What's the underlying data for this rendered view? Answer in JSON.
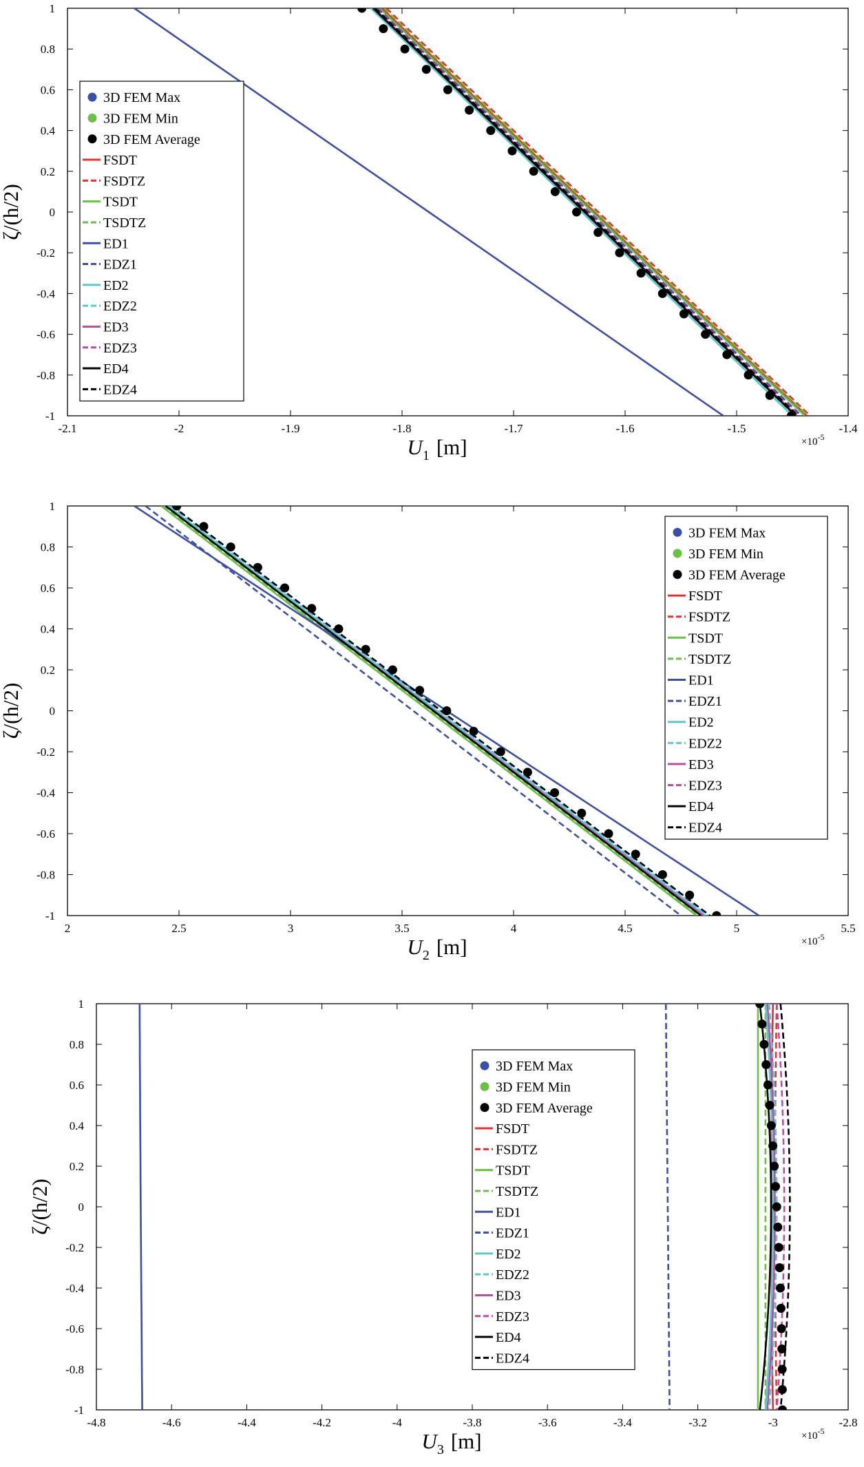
{
  "legend_entries": [
    {
      "label": "3D FEM Max",
      "kind": "marker",
      "color": "#3b4fa8"
    },
    {
      "label": "3D FEM Min",
      "kind": "marker",
      "color": "#6abf45"
    },
    {
      "label": "3D FEM Average",
      "kind": "marker",
      "color": "#000000"
    },
    {
      "label": "FSDT",
      "kind": "line",
      "color": "#e8302e",
      "dash": "solid"
    },
    {
      "label": "FSDTZ",
      "kind": "line",
      "color": "#e8302e",
      "dash": "dash"
    },
    {
      "label": "TSDT",
      "kind": "line",
      "color": "#6abf45",
      "dash": "solid"
    },
    {
      "label": "TSDTZ",
      "kind": "line",
      "color": "#6abf45",
      "dash": "dash"
    },
    {
      "label": "ED1",
      "kind": "line",
      "color": "#3b4fa8",
      "dash": "solid"
    },
    {
      "label": "EDZ1",
      "kind": "line",
      "color": "#3b4fa8",
      "dash": "dash"
    },
    {
      "label": "ED2",
      "kind": "line",
      "color": "#5bc8d0",
      "dash": "solid"
    },
    {
      "label": "EDZ2",
      "kind": "line",
      "color": "#5bc8d0",
      "dash": "dash"
    },
    {
      "label": "ED3",
      "kind": "line",
      "color": "#b84fa6",
      "dash": "solid"
    },
    {
      "label": "EDZ3",
      "kind": "line",
      "color": "#b84fa6",
      "dash": "dash"
    },
    {
      "label": "ED4",
      "kind": "line",
      "color": "#000000",
      "dash": "solid"
    },
    {
      "label": "EDZ4",
      "kind": "line",
      "color": "#000000",
      "dash": "dash"
    }
  ],
  "chart_data": [
    {
      "type": "line",
      "xlabel": "U",
      "xlabel_sub": "1",
      "xlabel_unit": "[m]",
      "ylabel": "ζ/(h/2)",
      "exponent_label": "×10",
      "exponent_power": "-5",
      "xlim": [
        -2.1,
        -1.4
      ],
      "ylim": [
        -1,
        1
      ],
      "xticks": [
        "-2.1",
        "-2",
        "-1.9",
        "-1.8",
        "-1.7",
        "-1.6",
        "-1.5",
        "-1.4"
      ],
      "yticks": [
        "-1",
        "-0.8",
        "-0.6",
        "-0.4",
        "-0.2",
        "0",
        "0.2",
        "0.4",
        "0.6",
        "0.8",
        "1"
      ],
      "legend_position": "left",
      "series": [
        {
          "name": "FSDT",
          "x_top": -1.818,
          "x_bottom": -1.437
        },
        {
          "name": "FSDTZ",
          "x_top": -1.814,
          "x_bottom": -1.434
        },
        {
          "name": "TSDT",
          "x_top": -1.82,
          "x_bottom": -1.439
        },
        {
          "name": "TSDTZ",
          "x_top": -1.816,
          "x_bottom": -1.436
        },
        {
          "name": "ED1",
          "x_top": -2.04,
          "x_bottom": -1.512
        },
        {
          "name": "EDZ1",
          "x_top": -1.822,
          "x_bottom": -1.442
        },
        {
          "name": "ED2",
          "x_top": -1.828,
          "x_bottom": -1.45
        },
        {
          "name": "EDZ2",
          "x_top": -1.826,
          "x_bottom": -1.448
        },
        {
          "name": "ED3",
          "x_top": -1.825,
          "x_bottom": -1.446
        },
        {
          "name": "EDZ3",
          "x_top": -1.823,
          "x_bottom": -1.444
        },
        {
          "name": "ED4",
          "x_top": -1.826,
          "x_bottom": -1.447
        },
        {
          "name": "EDZ4",
          "x_top": -1.824,
          "x_bottom": -1.445
        }
      ],
      "fem_average": {
        "x_top": -1.836,
        "x_bottom": -1.451,
        "points": 21
      }
    },
    {
      "type": "line",
      "xlabel": "U",
      "xlabel_sub": "2",
      "xlabel_unit": "[m]",
      "ylabel": "ζ/(h/2)",
      "exponent_label": "×10",
      "exponent_power": "-5",
      "xlim": [
        2,
        5.5
      ],
      "ylim": [
        -1,
        1
      ],
      "xticks": [
        "2",
        "2.5",
        "3",
        "3.5",
        "4",
        "4.5",
        "5",
        "5.5"
      ],
      "yticks": [
        "-1",
        "-0.8",
        "-0.6",
        "-0.4",
        "-0.2",
        "0",
        "0.2",
        "0.4",
        "0.6",
        "0.8",
        "1"
      ],
      "legend_position": "top-right",
      "series": [
        {
          "name": "FSDT",
          "x_top": 2.44,
          "x_bottom": 4.85
        },
        {
          "name": "FSDTZ",
          "x_top": 2.45,
          "x_bottom": 4.86
        },
        {
          "name": "TSDT",
          "x_top": 2.42,
          "x_bottom": 4.82
        },
        {
          "name": "TSDTZ",
          "x_top": 2.43,
          "x_bottom": 4.83
        },
        {
          "name": "ED1",
          "x_top": 2.3,
          "x_bottom": 5.1
        },
        {
          "name": "EDZ1",
          "x_top": 2.35,
          "x_bottom": 4.75
        },
        {
          "name": "ED2",
          "x_top": 2.45,
          "x_bottom": 4.86
        },
        {
          "name": "EDZ2",
          "x_top": 2.46,
          "x_bottom": 4.87
        },
        {
          "name": "ED3",
          "x_top": 2.44,
          "x_bottom": 4.85
        },
        {
          "name": "EDZ3",
          "x_top": 2.47,
          "x_bottom": 4.88
        },
        {
          "name": "ED4",
          "x_top": 2.44,
          "x_bottom": 4.84
        },
        {
          "name": "EDZ4",
          "x_top": 2.47,
          "x_bottom": 4.88
        }
      ],
      "fem_average": {
        "x_top": 2.49,
        "x_bottom": 4.91,
        "points": 21
      }
    },
    {
      "type": "line",
      "xlabel": "U",
      "xlabel_sub": "3",
      "xlabel_unit": "[m]",
      "ylabel": "ζ/(h/2)",
      "exponent_label": "×10",
      "exponent_power": "-5",
      "xlim": [
        -4.8,
        -2.8
      ],
      "ylim": [
        -1,
        1
      ],
      "xticks": [
        "-4.8",
        "-4.6",
        "-4.4",
        "-4.2",
        "-4",
        "-3.8",
        "-3.6",
        "-3.4",
        "-3.2",
        "-3",
        "-2.8"
      ],
      "yticks": [
        "-1",
        "-0.8",
        "-0.6",
        "-0.4",
        "-0.2",
        "0",
        "0.2",
        "0.4",
        "0.6",
        "0.8",
        "1"
      ],
      "legend_position": "center-right",
      "series": [
        {
          "name": "FSDT",
          "x_top": -3.0,
          "x_mid": -3.005,
          "x_bottom": -3.0
        },
        {
          "name": "FSDTZ",
          "x_top": -2.99,
          "x_mid": -2.995,
          "x_bottom": -2.99
        },
        {
          "name": "TSDT",
          "x_top": -3.04,
          "x_mid": -3.04,
          "x_bottom": -3.04
        },
        {
          "name": "TSDTZ",
          "x_top": -3.02,
          "x_mid": -3.02,
          "x_bottom": -3.02
        },
        {
          "name": "ED1",
          "x_top": -4.685,
          "x_mid": -4.682,
          "x_bottom": -4.678
        },
        {
          "name": "EDZ1",
          "x_top": -3.285,
          "x_mid": -3.28,
          "x_bottom": -3.275
        },
        {
          "name": "ED2",
          "x_top": -3.02,
          "x_mid": -3.0,
          "x_bottom": -3.02
        },
        {
          "name": "EDZ2",
          "x_top": -3.01,
          "x_mid": -2.99,
          "x_bottom": -3.01
        },
        {
          "name": "ED3",
          "x_top": -3.015,
          "x_mid": -2.995,
          "x_bottom": -3.015
        },
        {
          "name": "EDZ3",
          "x_top": -2.99,
          "x_mid": -2.97,
          "x_bottom": -2.99
        },
        {
          "name": "ED4",
          "x_top": -3.035,
          "x_mid": -3.005,
          "x_bottom": -3.035
        },
        {
          "name": "EDZ4",
          "x_top": -2.98,
          "x_mid": -2.955,
          "x_bottom": -2.98
        }
      ],
      "fem_average": {
        "x_top": -3.035,
        "x_mid": -2.99,
        "x_bottom": -2.975,
        "points": 21
      }
    }
  ]
}
